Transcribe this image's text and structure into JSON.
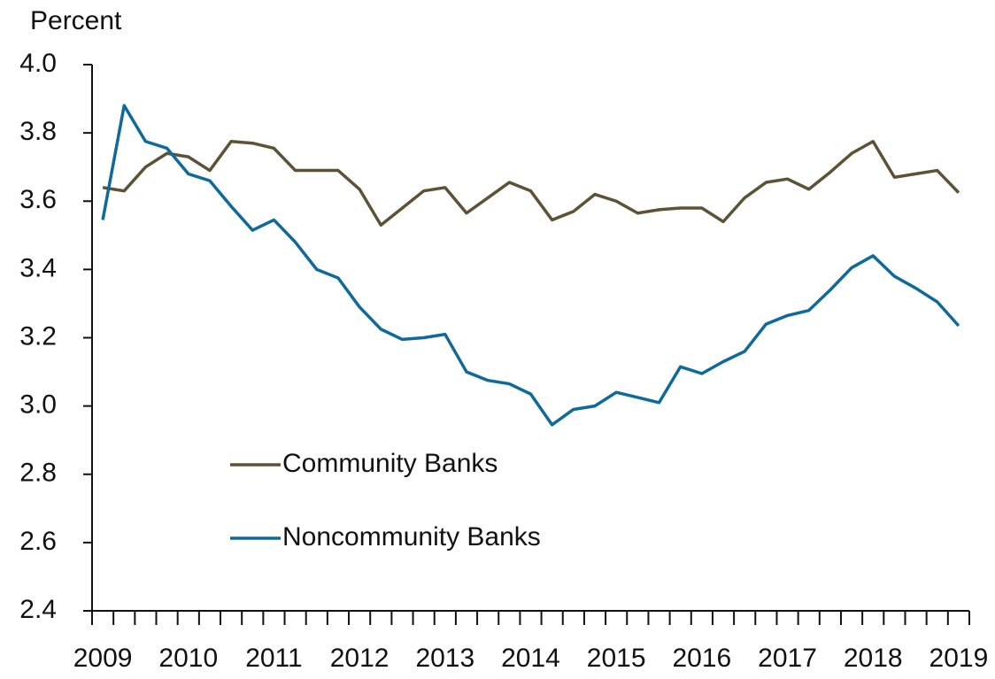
{
  "chart_data": {
    "type": "line",
    "y_label": "Percent",
    "categories": [
      "2009",
      null,
      null,
      null,
      "2010",
      null,
      null,
      null,
      "2011",
      null,
      null,
      null,
      "2012",
      null,
      null,
      null,
      "2013",
      null,
      null,
      null,
      "2014",
      null,
      null,
      null,
      "2015",
      null,
      null,
      null,
      "2016",
      null,
      null,
      null,
      "2017",
      null,
      null,
      null,
      "2018",
      null,
      null,
      null,
      "2019"
    ],
    "series": [
      {
        "name": "Community Banks",
        "color": "#5e5236",
        "values": [
          3.64,
          3.63,
          3.7,
          3.74,
          3.73,
          3.69,
          3.775,
          3.77,
          3.755,
          3.69,
          3.69,
          3.69,
          3.635,
          3.53,
          3.58,
          3.63,
          3.64,
          3.565,
          3.61,
          3.655,
          3.63,
          3.545,
          3.57,
          3.62,
          3.6,
          3.565,
          3.575,
          3.58,
          3.58,
          3.54,
          3.61,
          3.655,
          3.665,
          3.635,
          3.685,
          3.74,
          3.775,
          3.67,
          3.68,
          3.69,
          3.625
        ]
      },
      {
        "name": "Noncommunity Banks",
        "color": "#0f6a9c",
        "values": [
          3.545,
          3.88,
          3.775,
          3.755,
          3.68,
          3.66,
          3.585,
          3.515,
          3.545,
          3.48,
          3.4,
          3.375,
          3.29,
          3.225,
          3.195,
          3.2,
          3.21,
          3.1,
          3.075,
          3.065,
          3.035,
          2.945,
          2.99,
          3.0,
          3.04,
          3.025,
          3.01,
          3.115,
          3.095,
          3.13,
          3.16,
          3.24,
          3.265,
          3.28,
          3.34,
          3.405,
          3.44,
          3.38,
          3.345,
          3.305,
          3.235
        ]
      }
    ],
    "ylim": [
      2.4,
      4
    ],
    "yticks": [
      {
        "value": 4,
        "label": "4.0"
      },
      3.8,
      3.6,
      3.4,
      3.2,
      {
        "value": 3,
        "label": "3.0"
      },
      2.8,
      2.6,
      2.4
    ],
    "grid": false
  }
}
